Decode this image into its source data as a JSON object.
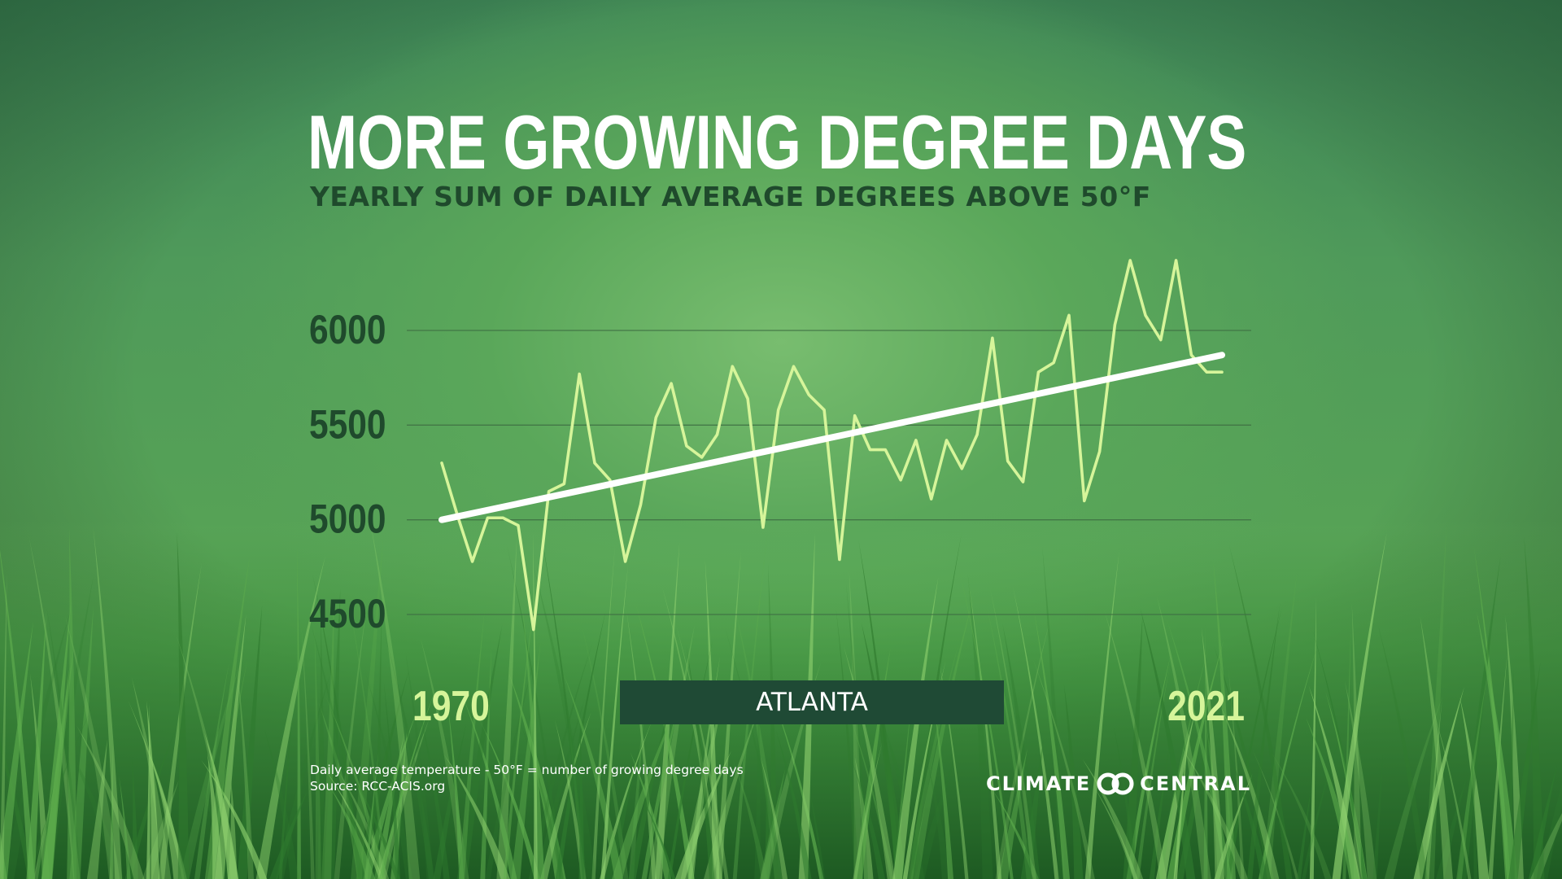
{
  "title": "MORE GROWING DEGREE DAYS",
  "subtitle": "YEARLY SUM OF DAILY AVERAGE DEGREES ABOVE 50°F",
  "city": "ATLANTA",
  "footnote": {
    "line1": "Daily average temperature - 50°F = number of growing degree days",
    "line2": "Source: RCC-ACIS.org"
  },
  "brand": {
    "left_word": "CLIMATE",
    "right_word": "CENTRAL",
    "logo_icon": "two-linked-circles-icon"
  },
  "colors": {
    "series_line": "#d6f59a",
    "trend_line": "#ffffff",
    "tick_labels": "#1f4a2c",
    "year_labels": "#d6f59a",
    "grid": "#3e6e43",
    "city_box": "#1f4a35"
  },
  "chart_data": {
    "type": "line",
    "title": "MORE GROWING DEGREE DAYS",
    "subtitle": "YEARLY SUM OF DAILY AVERAGE DEGREES ABOVE 50°F",
    "xlabel": "",
    "ylabel": "",
    "x_tick_labels": [
      "1970",
      "2021"
    ],
    "xlim": [
      1970,
      2021
    ],
    "y_ticks": [
      6000,
      5500,
      5000,
      4500
    ],
    "ylim": [
      4400,
      6600
    ],
    "grid": true,
    "legend": "none",
    "x": [
      1970,
      1971,
      1972,
      1973,
      1974,
      1975,
      1976,
      1977,
      1978,
      1979,
      1980,
      1981,
      1982,
      1983,
      1984,
      1985,
      1986,
      1987,
      1988,
      1989,
      1990,
      1991,
      1992,
      1993,
      1994,
      1995,
      1996,
      1997,
      1998,
      1999,
      2000,
      2001,
      2002,
      2003,
      2004,
      2005,
      2006,
      2007,
      2008,
      2009,
      2010,
      2011,
      2012,
      2013,
      2014,
      2015,
      2016,
      2017,
      2018,
      2019,
      2020,
      2021
    ],
    "series": [
      {
        "values": [
          5300,
          5030,
          4780,
          5010,
          5010,
          4970,
          4420,
          5150,
          5190,
          5770,
          5300,
          5210,
          4780,
          5080,
          5540,
          5720,
          5390,
          5330,
          5450,
          5810,
          5640,
          4960,
          5580,
          5810,
          5660,
          5580,
          4790,
          5550,
          5370,
          5370,
          5210,
          5420,
          5110,
          5420,
          5270,
          5450,
          5960,
          5310,
          5200,
          5780,
          5830,
          6080,
          5100,
          5360,
          6030,
          6370,
          6080,
          5950,
          6370,
          5870,
          5780,
          5780
        ]
      }
    ],
    "trendline": {
      "start": [
        1970,
        5000
      ],
      "end": [
        2021,
        5870
      ]
    }
  }
}
